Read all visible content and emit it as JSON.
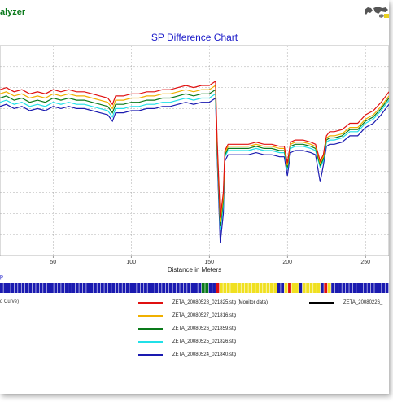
{
  "app": {
    "title_fragment": "alyzer"
  },
  "chart_data": {
    "type": "line",
    "title": "SP Difference Chart",
    "xlabel": "Distance in Meters",
    "ylabel": "",
    "xlim": [
      16,
      265
    ],
    "ylim": [
      0,
      10
    ],
    "x_ticks": [
      50,
      100,
      150,
      200,
      250
    ],
    "grid": true,
    "x": [
      16,
      20,
      25,
      30,
      35,
      40,
      45,
      50,
      55,
      60,
      65,
      70,
      75,
      80,
      85,
      88,
      90,
      95,
      100,
      105,
      110,
      115,
      120,
      125,
      130,
      135,
      140,
      145,
      150,
      152,
      154,
      155,
      157,
      159,
      160,
      162,
      165,
      170,
      175,
      180,
      185,
      190,
      195,
      198,
      200,
      202,
      205,
      210,
      215,
      218,
      221,
      223,
      225,
      227,
      230,
      235,
      240,
      245,
      250,
      255,
      260,
      265
    ],
    "series": [
      {
        "name": "ZETA_20080528_021825.stg (Monitor data)",
        "color": "#e01010",
        "values": [
          7.9,
          8.0,
          7.8,
          7.9,
          7.7,
          7.8,
          7.7,
          7.9,
          7.8,
          7.9,
          7.8,
          7.8,
          7.7,
          7.6,
          7.5,
          7.2,
          7.6,
          7.6,
          7.7,
          7.7,
          7.8,
          7.8,
          7.9,
          7.9,
          8.0,
          8.1,
          8.0,
          8.1,
          8.1,
          8.2,
          8.3,
          5.6,
          1.8,
          3.0,
          5.0,
          5.3,
          5.3,
          5.3,
          5.3,
          5.4,
          5.3,
          5.3,
          5.2,
          5.2,
          4.4,
          5.4,
          5.5,
          5.5,
          5.4,
          5.3,
          4.5,
          4.8,
          5.7,
          5.9,
          5.9,
          6.0,
          6.3,
          6.3,
          6.7,
          6.9,
          7.3,
          7.8
        ]
      },
      {
        "name": "ZETA_20080527_021816.stg",
        "color": "#f0b000",
        "values": [
          7.7,
          7.8,
          7.6,
          7.7,
          7.5,
          7.6,
          7.5,
          7.7,
          7.6,
          7.7,
          7.6,
          7.6,
          7.5,
          7.4,
          7.3,
          7.0,
          7.4,
          7.4,
          7.5,
          7.5,
          7.6,
          7.6,
          7.7,
          7.7,
          7.8,
          7.9,
          7.8,
          7.9,
          7.9,
          8.0,
          8.1,
          5.4,
          1.6,
          2.8,
          4.9,
          5.2,
          5.2,
          5.2,
          5.2,
          5.3,
          5.2,
          5.2,
          5.1,
          5.1,
          4.3,
          5.3,
          5.4,
          5.4,
          5.3,
          5.2,
          4.4,
          4.7,
          5.6,
          5.7,
          5.7,
          5.8,
          6.1,
          6.1,
          6.5,
          6.7,
          7.1,
          7.6
        ]
      },
      {
        "name": "ZETA_20080526_021859.stg",
        "color": "#0a7a1a",
        "values": [
          7.5,
          7.6,
          7.4,
          7.5,
          7.3,
          7.4,
          7.3,
          7.5,
          7.4,
          7.5,
          7.4,
          7.4,
          7.3,
          7.2,
          7.1,
          6.8,
          7.2,
          7.2,
          7.3,
          7.3,
          7.4,
          7.4,
          7.5,
          7.5,
          7.6,
          7.7,
          7.6,
          7.7,
          7.7,
          7.8,
          7.9,
          5.2,
          1.4,
          2.6,
          4.8,
          5.1,
          5.1,
          5.1,
          5.1,
          5.2,
          5.1,
          5.1,
          5.0,
          5.0,
          4.2,
          5.2,
          5.3,
          5.3,
          5.2,
          5.1,
          4.3,
          4.6,
          5.5,
          5.6,
          5.6,
          5.7,
          6.0,
          6.0,
          6.4,
          6.6,
          7.0,
          7.5
        ]
      },
      {
        "name": "ZETA_20080525_021826.stg",
        "color": "#20e0e8",
        "values": [
          7.3,
          7.4,
          7.2,
          7.3,
          7.1,
          7.2,
          7.1,
          7.3,
          7.2,
          7.3,
          7.2,
          7.2,
          7.1,
          7.0,
          6.9,
          6.6,
          7.0,
          7.0,
          7.1,
          7.1,
          7.2,
          7.2,
          7.3,
          7.3,
          7.4,
          7.5,
          7.4,
          7.5,
          7.5,
          7.6,
          7.7,
          5.0,
          1.2,
          2.4,
          4.7,
          5.0,
          5.0,
          5.0,
          5.0,
          5.1,
          5.0,
          5.0,
          4.9,
          4.9,
          4.1,
          5.1,
          5.2,
          5.2,
          5.1,
          5.0,
          4.2,
          4.5,
          5.4,
          5.5,
          5.5,
          5.6,
          5.9,
          5.9,
          6.3,
          6.5,
          6.9,
          7.4
        ]
      },
      {
        "name": "ZETA_20080524_021840.stg",
        "color": "#1a1ab0",
        "values": [
          7.1,
          7.2,
          7.0,
          7.1,
          6.9,
          7.0,
          6.9,
          7.1,
          7.0,
          7.1,
          7.0,
          7.0,
          6.9,
          6.8,
          6.7,
          6.4,
          6.8,
          6.8,
          6.9,
          6.9,
          7.0,
          7.0,
          7.1,
          7.1,
          7.2,
          7.3,
          7.2,
          7.3,
          7.3,
          7.4,
          7.5,
          4.8,
          0.6,
          2.0,
          4.5,
          4.8,
          4.8,
          4.8,
          4.8,
          4.9,
          4.8,
          4.8,
          4.7,
          4.7,
          3.8,
          4.9,
          5.0,
          5.0,
          4.9,
          4.8,
          3.5,
          4.3,
          5.2,
          5.3,
          5.3,
          5.4,
          5.7,
          5.7,
          6.1,
          6.3,
          6.7,
          7.2
        ]
      }
    ]
  },
  "strip_label": "p",
  "legend": {
    "left_fragment": "d Curve)",
    "items": [
      {
        "name": "ZETA_20080528_021825.stg (Monitor data)",
        "color": "#e01010"
      },
      {
        "name": "ZETA_20080527_021816.stg",
        "color": "#f0b000"
      },
      {
        "name": "ZETA_20080526_021859.stg",
        "color": "#0a7a1a"
      },
      {
        "name": "ZETA_20080525_021826.stg",
        "color": "#20e0e8"
      },
      {
        "name": "ZETA_20080524_021840.stg",
        "color": "#1a1ab0"
      }
    ],
    "extra": {
      "name": "ZETA_20080226_",
      "color": "#000000"
    }
  },
  "status_strip": [
    "#1a1ab0",
    "#1a1ab0",
    "#1a1ab0",
    "#1a1ab0",
    "#1a1ab0",
    "#1a1ab0",
    "#1a1ab0",
    "#1a1ab0",
    "#1a1ab0",
    "#1a1ab0",
    "#1a1ab0",
    "#1a1ab0",
    "#1a1ab0",
    "#1a1ab0",
    "#1a1ab0",
    "#1a1ab0",
    "#1a1ab0",
    "#1a1ab0",
    "#1a1ab0",
    "#1a1ab0",
    "#1a1ab0",
    "#1a1ab0",
    "#1a1ab0",
    "#1a1ab0",
    "#1a1ab0",
    "#1a1ab0",
    "#1a1ab0",
    "#1a1ab0",
    "#1a1ab0",
    "#1a1ab0",
    "#1a1ab0",
    "#1a1ab0",
    "#1a1ab0",
    "#1a1ab0",
    "#1a1ab0",
    "#1a1ab0",
    "#1a1ab0",
    "#1a1ab0",
    "#1a1ab0",
    "#1a1ab0",
    "#1a1ab0",
    "#1a1ab0",
    "#1a1ab0",
    "#1a1ab0",
    "#1a1ab0",
    "#1a1ab0",
    "#1a1ab0",
    "#1a1ab0",
    "#1a1ab0",
    "#1a1ab0",
    "#1a1ab0",
    "#1a1ab0",
    "#1a1ab0",
    "#1a1ab0",
    "#1a1ab0",
    "#1a1ab0",
    "#0a7a1a",
    "#0a7a1a",
    "#1a1ab0",
    "#1a1ab0",
    "#e01010",
    "#f0e020",
    "#f0e020",
    "#f0e020",
    "#f0e020",
    "#f0e020",
    "#f0e020",
    "#f0e020",
    "#f0e020",
    "#f0e020",
    "#f0e020",
    "#f0e020",
    "#f0e020",
    "#f0e020",
    "#f0e020",
    "#f0e020",
    "#f0e020",
    "#1a1ab0",
    "#1a1ab0",
    "#f0e020",
    "#e01010",
    "#f0e020",
    "#f0e020",
    "#1a1ab0",
    "#f0e020",
    "#f0e020",
    "#f0e020",
    "#f0e020",
    "#f0e020",
    "#1a1ab0",
    "#e01010",
    "#f0e020",
    "#1a1ab0",
    "#1a1ab0",
    "#1a1ab0",
    "#1a1ab0",
    "#1a1ab0",
    "#1a1ab0",
    "#1a1ab0",
    "#1a1ab0",
    "#1a1ab0",
    "#1a1ab0",
    "#1a1ab0",
    "#1a1ab0",
    "#1a1ab0",
    "#1a1ab0",
    "#1a1ab0",
    "#1a1ab0"
  ]
}
